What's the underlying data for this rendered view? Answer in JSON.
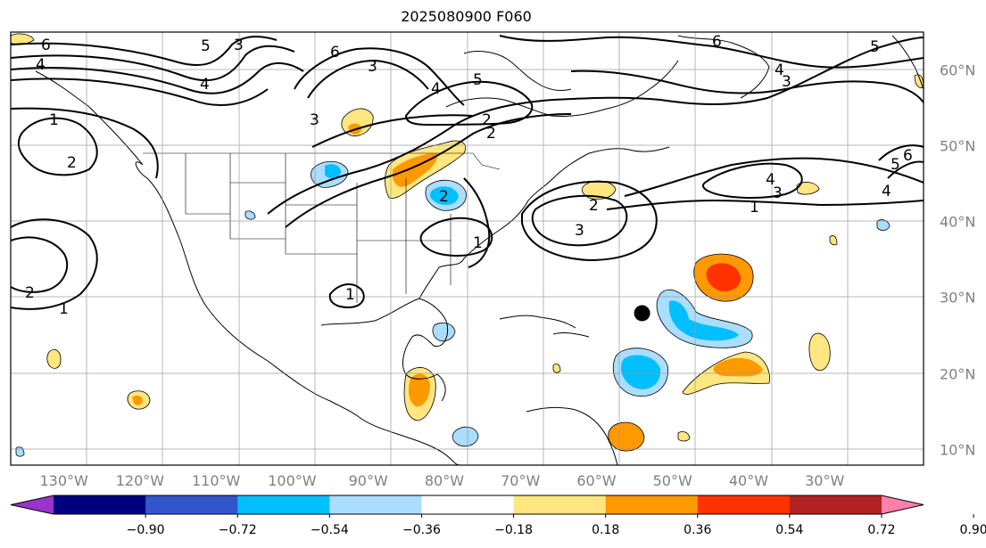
{
  "title": "2025080900 F060",
  "map": {
    "region": "North Atlantic / North America",
    "lon_labels": [
      "130°W",
      "120°W",
      "110°W",
      "100°W",
      "90°W",
      "80°W",
      "70°W",
      "60°W",
      "50°W",
      "40°W",
      "30°W"
    ],
    "lat_labels": [
      "60°N",
      "50°N",
      "40°N",
      "30°N",
      "20°N",
      "10°N"
    ],
    "lon_range": [
      -137,
      -17
    ],
    "lat_range": [
      8,
      65
    ],
    "grid": true,
    "marker": {
      "name": "storm-center-dot",
      "lon": -54,
      "lat": 28,
      "color": "#000000"
    },
    "contour_labels": [
      "6",
      "5",
      "4",
      "3",
      "6",
      "3",
      "4",
      "5",
      "2",
      "1",
      "2",
      "1",
      "6",
      "5",
      "4",
      "3",
      "4",
      "3",
      "2",
      "1",
      "2",
      "3",
      "2",
      "1",
      "1",
      "6",
      "5",
      "4",
      "3",
      "4",
      "2"
    ]
  },
  "colorbar": {
    "ticks": [
      "−0.90",
      "−0.72",
      "−0.54",
      "−0.36",
      "−0.18",
      "0.18",
      "0.36",
      "0.54",
      "0.72",
      "0.90"
    ],
    "colors": [
      "#9933cc",
      "#000080",
      "#3355cc",
      "#00bfff",
      "#aaddff",
      "#ffffff",
      "#ffe680",
      "#ff9900",
      "#ff3300",
      "#b22222",
      "#ff80aa"
    ],
    "extend": "both"
  }
}
